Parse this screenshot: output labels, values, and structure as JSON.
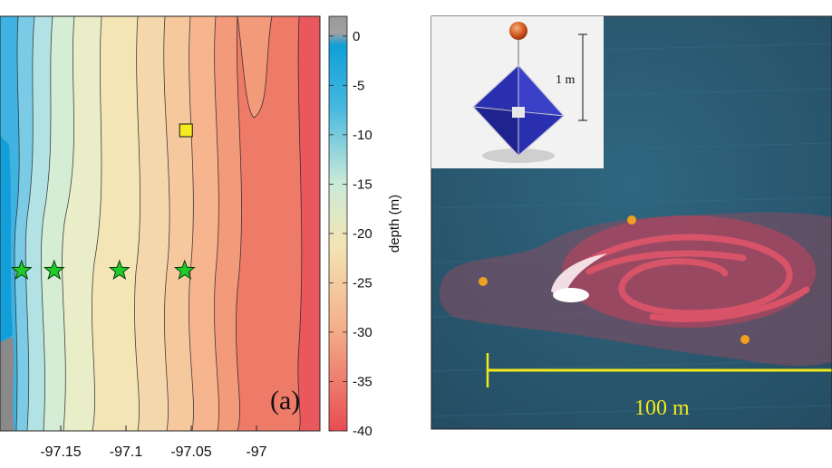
{
  "panel_a": {
    "label": "(a)",
    "x_ticks": [
      {
        "label": "-97.15",
        "value": -97.15
      },
      {
        "label": "-97.1",
        "value": -97.1
      },
      {
        "label": "-97.05",
        "value": -97.05
      },
      {
        "label": "-97",
        "value": -97.0
      }
    ],
    "colorbar": {
      "label": "depth (m)",
      "ticks": [
        {
          "label": "0",
          "value": 0
        },
        {
          "label": "-5",
          "value": -5
        },
        {
          "label": "-10",
          "value": -10
        },
        {
          "label": "-15",
          "value": -15
        },
        {
          "label": "-20",
          "value": -20
        },
        {
          "label": "-25",
          "value": -25
        },
        {
          "label": "-30",
          "value": -30
        },
        {
          "label": "-35",
          "value": -35
        },
        {
          "label": "-40",
          "value": -40
        }
      ],
      "range": [
        -40,
        2
      ]
    },
    "markers": {
      "stars": [
        {
          "lon": -97.18
        },
        {
          "lon": -97.155
        },
        {
          "lon": -97.105
        },
        {
          "lon": -97.055
        }
      ],
      "square": {
        "lon": -97.054
      }
    },
    "colors": {
      "land": "#8a8a8a",
      "shallow": "#1aa9e0",
      "mid": "#f3e5b4",
      "deep": "#e74c52",
      "star": "#1ecb2b",
      "square": "#f4ec20"
    }
  },
  "panel_b": {
    "scale_label": "100 m",
    "inset_label": "1 m",
    "colors": {
      "sea": "#2e5a72",
      "dye": "#d8485c",
      "drifter": "#f0a020",
      "scale": "#f0ea1a",
      "octahedron": "#2a2fb0"
    }
  }
}
